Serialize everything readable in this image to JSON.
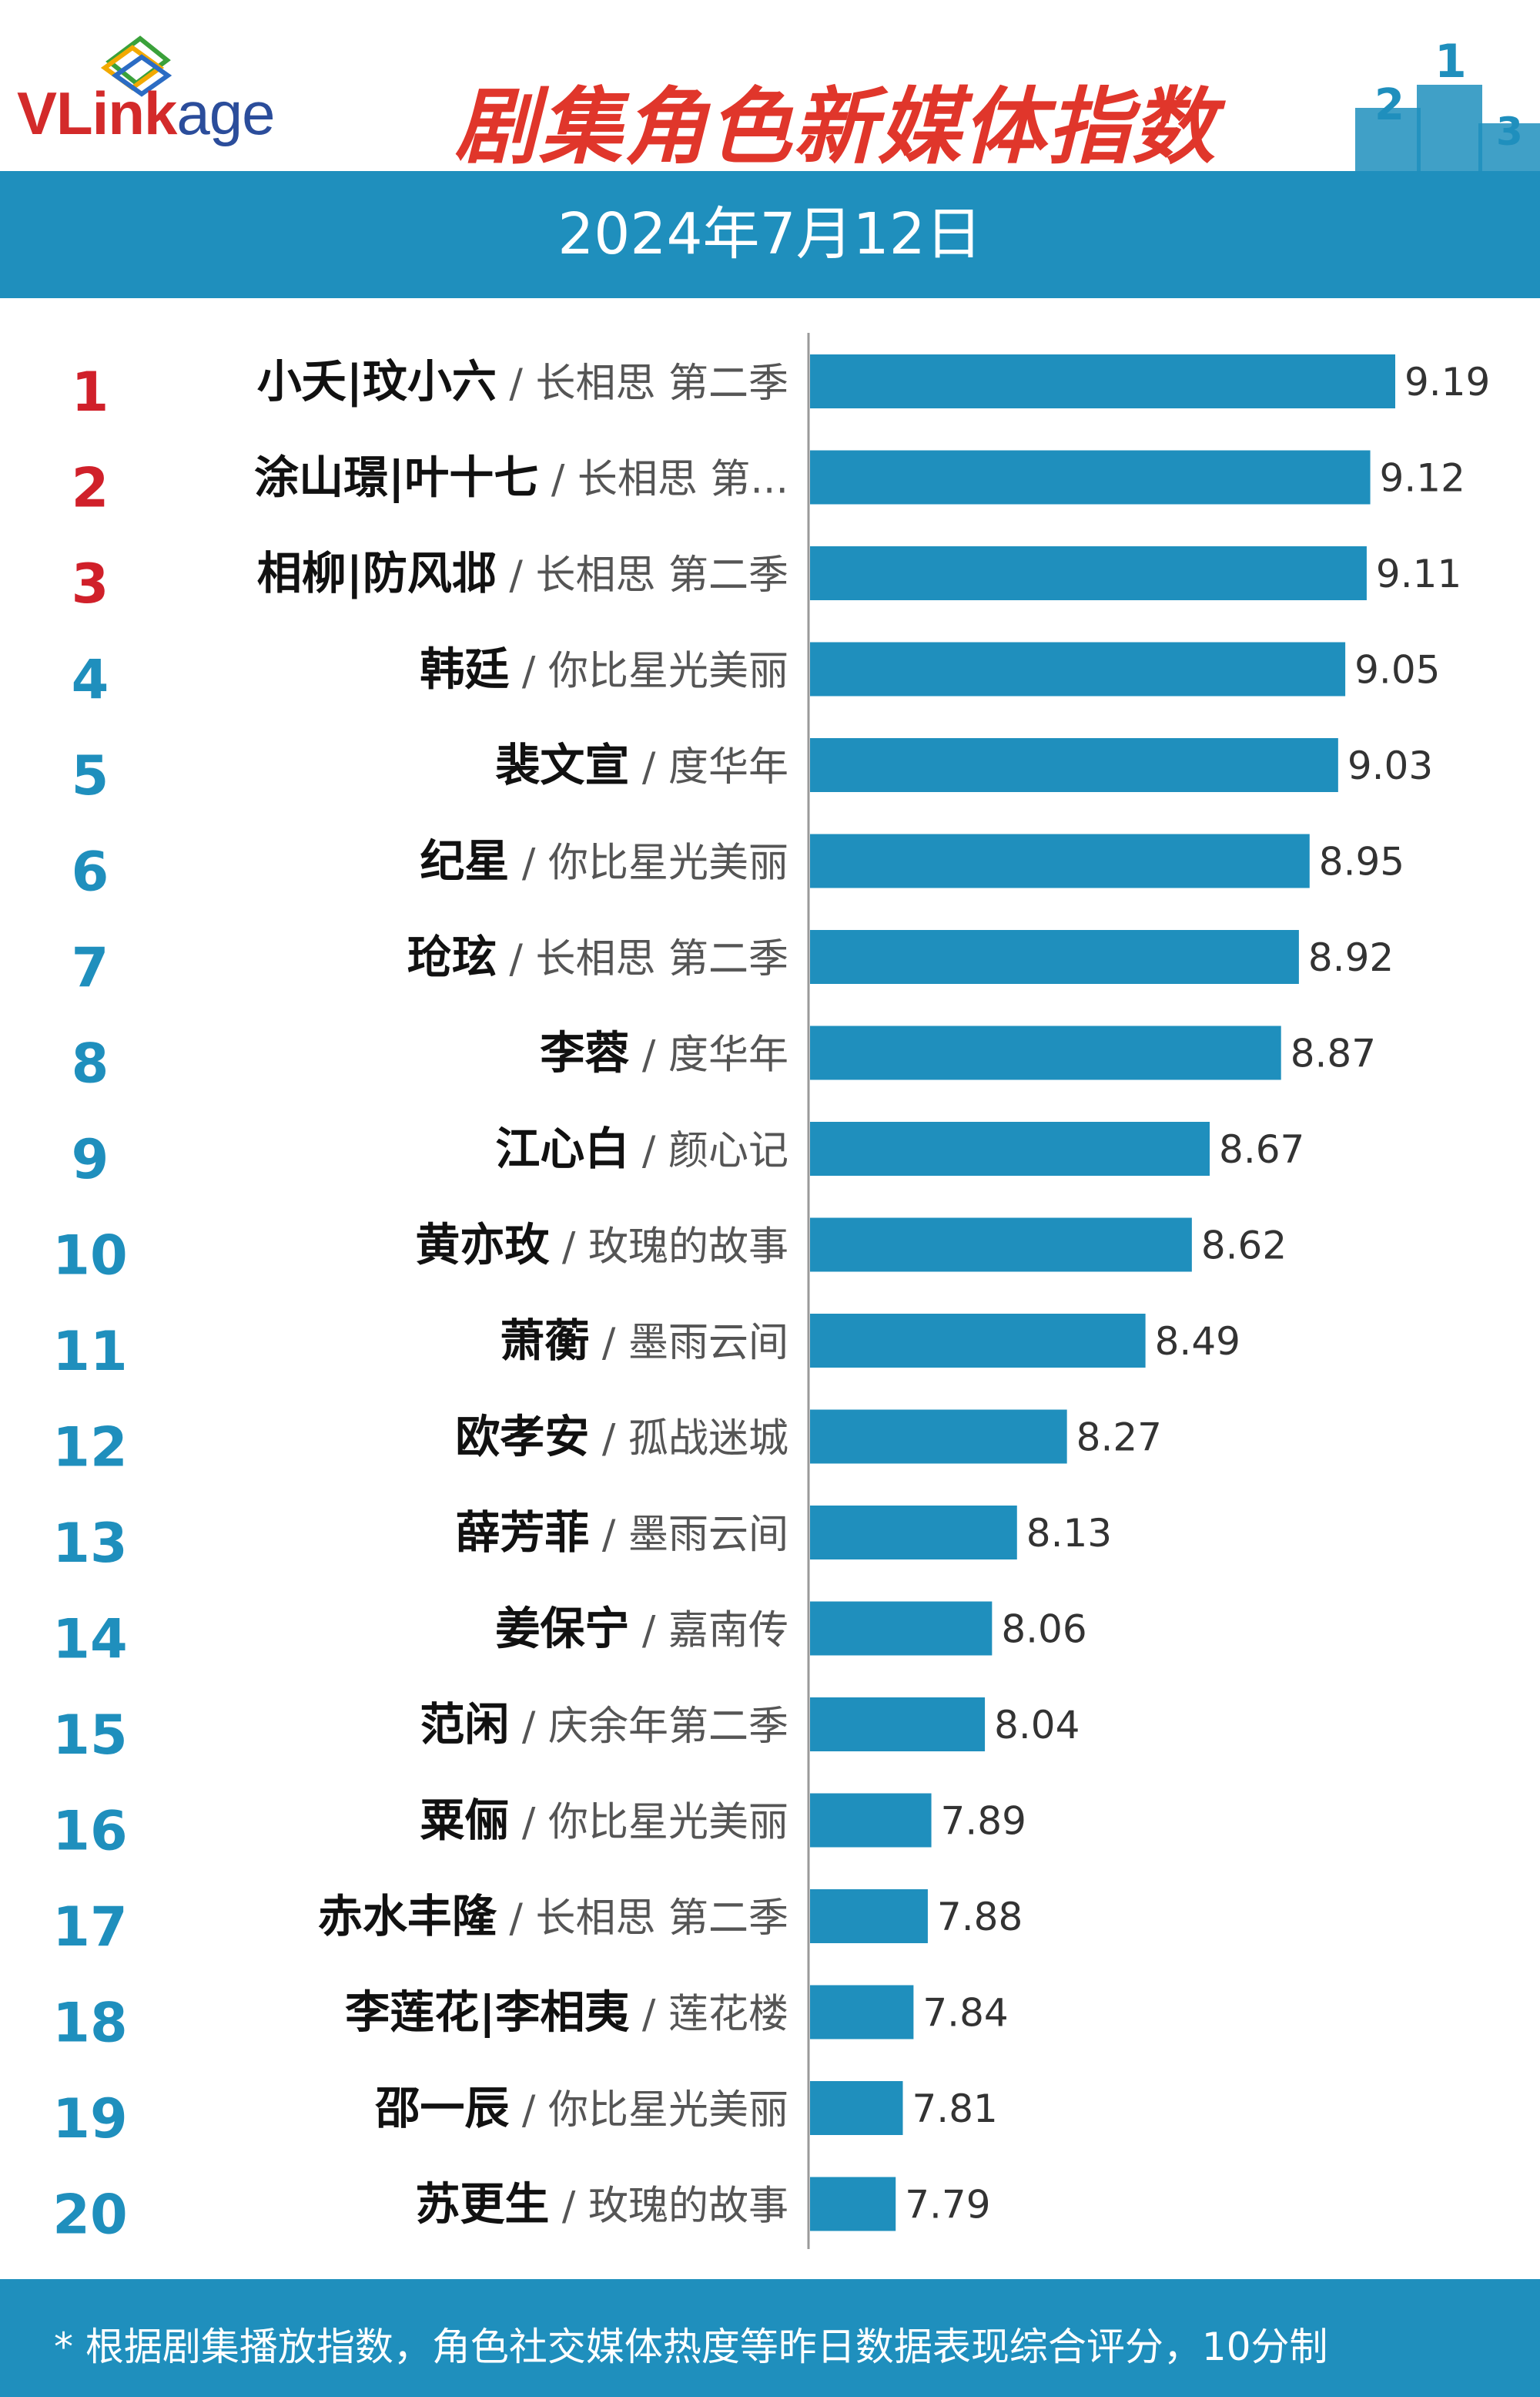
{
  "brand": {
    "logo_text_v": "V",
    "logo_text_link": "Link",
    "logo_text_age": "age"
  },
  "header": {
    "title": "剧集角色新媒体指数",
    "date": "2024年7月12日"
  },
  "colors": {
    "bar": "#1f8fbd",
    "rank_top": "#d0202a",
    "rank_other": "#1f8fbd",
    "band": "#1f8fbd",
    "title": "#e0362b"
  },
  "podium": {
    "labels": [
      "2",
      "1",
      "3"
    ]
  },
  "chart_data": {
    "type": "bar",
    "orientation": "horizontal",
    "title": "剧集角色新媒体指数",
    "subtitle": "2024年7月12日",
    "xlim": [
      7.55,
      9.28
    ],
    "ranks": [
      "1",
      "2",
      "3",
      "4",
      "5",
      "6",
      "7",
      "8",
      "9",
      "10",
      "11",
      "12",
      "13",
      "14",
      "15",
      "16",
      "17",
      "18",
      "19",
      "20"
    ],
    "characters": [
      "小夭|玟小六",
      "涂山璟|叶十七",
      "相柳|防风邶",
      "韩廷",
      "裴文宣",
      "纪星",
      "玱玹",
      "李蓉",
      "江心白",
      "黄亦玫",
      "萧蘅",
      "欧孝安",
      "薛芳菲",
      "姜保宁",
      "范闲",
      "粟俪",
      "赤水丰隆",
      "李莲花|李相夷",
      "邵一辰",
      "苏更生"
    ],
    "dramas": [
      "长相思 第二季",
      "长相思 第...",
      "长相思 第二季",
      "你比星光美丽",
      "度华年",
      "你比星光美丽",
      "长相思 第二季",
      "度华年",
      "颜心记",
      "玫瑰的故事",
      "墨雨云间",
      "孤战迷城",
      "墨雨云间",
      "嘉南传",
      "庆余年第二季",
      "你比星光美丽",
      "长相思 第二季",
      "莲花楼",
      "你比星光美丽",
      "玫瑰的故事"
    ],
    "values": [
      9.19,
      9.12,
      9.11,
      9.05,
      9.03,
      8.95,
      8.92,
      8.87,
      8.67,
      8.62,
      8.49,
      8.27,
      8.13,
      8.06,
      8.04,
      7.89,
      7.88,
      7.84,
      7.81,
      7.79
    ],
    "value_labels": [
      "9.19",
      "9.12",
      "9.11",
      "9.05",
      "9.03",
      "8.95",
      "8.92",
      "8.87",
      "8.67",
      "8.62",
      "8.49",
      "8.27",
      "8.13",
      "8.06",
      "8.04",
      "7.89",
      "7.88",
      "7.84",
      "7.81",
      "7.79"
    ],
    "separator": "/"
  },
  "footer": {
    "note": "* 根据剧集播放指数，角色社交媒体热度等昨日数据表现综合评分，10分制"
  }
}
